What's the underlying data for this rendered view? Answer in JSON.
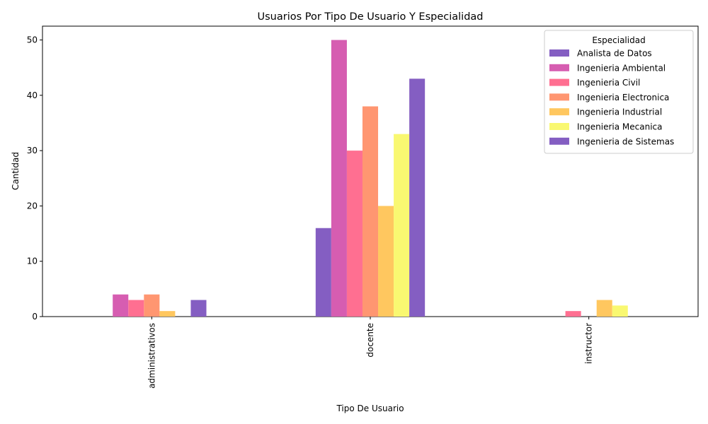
{
  "chart_data": {
    "type": "bar",
    "title": "Usuarios Por Tipo De Usuario Y Especialidad",
    "xlabel": "Tipo De Usuario",
    "ylabel": "Cantidad",
    "ylim": [
      0,
      52.5
    ],
    "yticks": [
      0,
      10,
      20,
      30,
      40,
      50
    ],
    "categories": [
      "administrativos",
      "docente",
      "instructor"
    ],
    "legend": {
      "title": "Especialidad",
      "position": "top-right"
    },
    "series": [
      {
        "name": "Analista de Datos",
        "color": "#845ec2",
        "values": [
          0,
          16,
          0
        ]
      },
      {
        "name": "Ingenieria Ambiental",
        "color": "#d65db1",
        "values": [
          4,
          50,
          0
        ]
      },
      {
        "name": "Ingenieria Civil",
        "color": "#ff6f91",
        "values": [
          3,
          30,
          1
        ]
      },
      {
        "name": "Ingenieria Electronica",
        "color": "#ff9671",
        "values": [
          4,
          38,
          0
        ]
      },
      {
        "name": "Ingenieria Industrial",
        "color": "#ffc75f",
        "values": [
          1,
          20,
          3
        ]
      },
      {
        "name": "Ingenieria Mecanica",
        "color": "#f9f871",
        "values": [
          0,
          33,
          2
        ]
      },
      {
        "name": "Ingenieria de Sistemas",
        "color": "#845ec2",
        "values": [
          3,
          43,
          0
        ]
      }
    ]
  }
}
